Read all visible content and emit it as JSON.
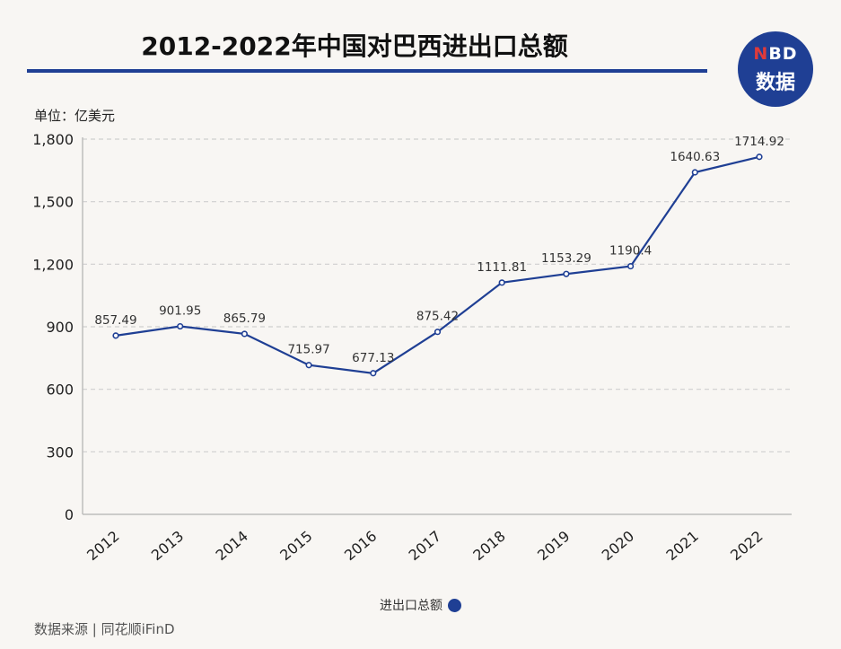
{
  "title": "2012-2022年中国对巴西进出口总额",
  "unit": "单位：亿美元",
  "logo": {
    "line1": "NBD",
    "line2": "数据"
  },
  "legend_label": "进出口总额",
  "source": "数据来源 | 同花顺iFinD",
  "colors": {
    "line": "#1f3f94",
    "accent": "#1f3f94",
    "grid": "#cfcfcf"
  },
  "chart_data": {
    "type": "line",
    "x": [
      "2012",
      "2013",
      "2014",
      "2015",
      "2016",
      "2017",
      "2018",
      "2019",
      "2020",
      "2021",
      "2022"
    ],
    "series": [
      {
        "name": "进出口总额",
        "values": [
          857.49,
          901.95,
          865.79,
          715.97,
          677.13,
          875.42,
          1111.81,
          1153.29,
          1190.4,
          1640.63,
          1714.92
        ],
        "labels": [
          "857.49",
          "901.95",
          "865.79",
          "715.97",
          "677.13",
          "875.42",
          "1111.81",
          "1153.29",
          "1190.4",
          "1640.63",
          "1714.92"
        ]
      }
    ],
    "ylim": [
      0,
      1800
    ],
    "yticks": [
      0,
      300,
      600,
      900,
      1200,
      1500,
      1800
    ],
    "ytick_labels": [
      "0",
      "300",
      "600",
      "900",
      "1,200",
      "1,500",
      "1,800"
    ],
    "grid": true,
    "legend_position": "bottom"
  }
}
